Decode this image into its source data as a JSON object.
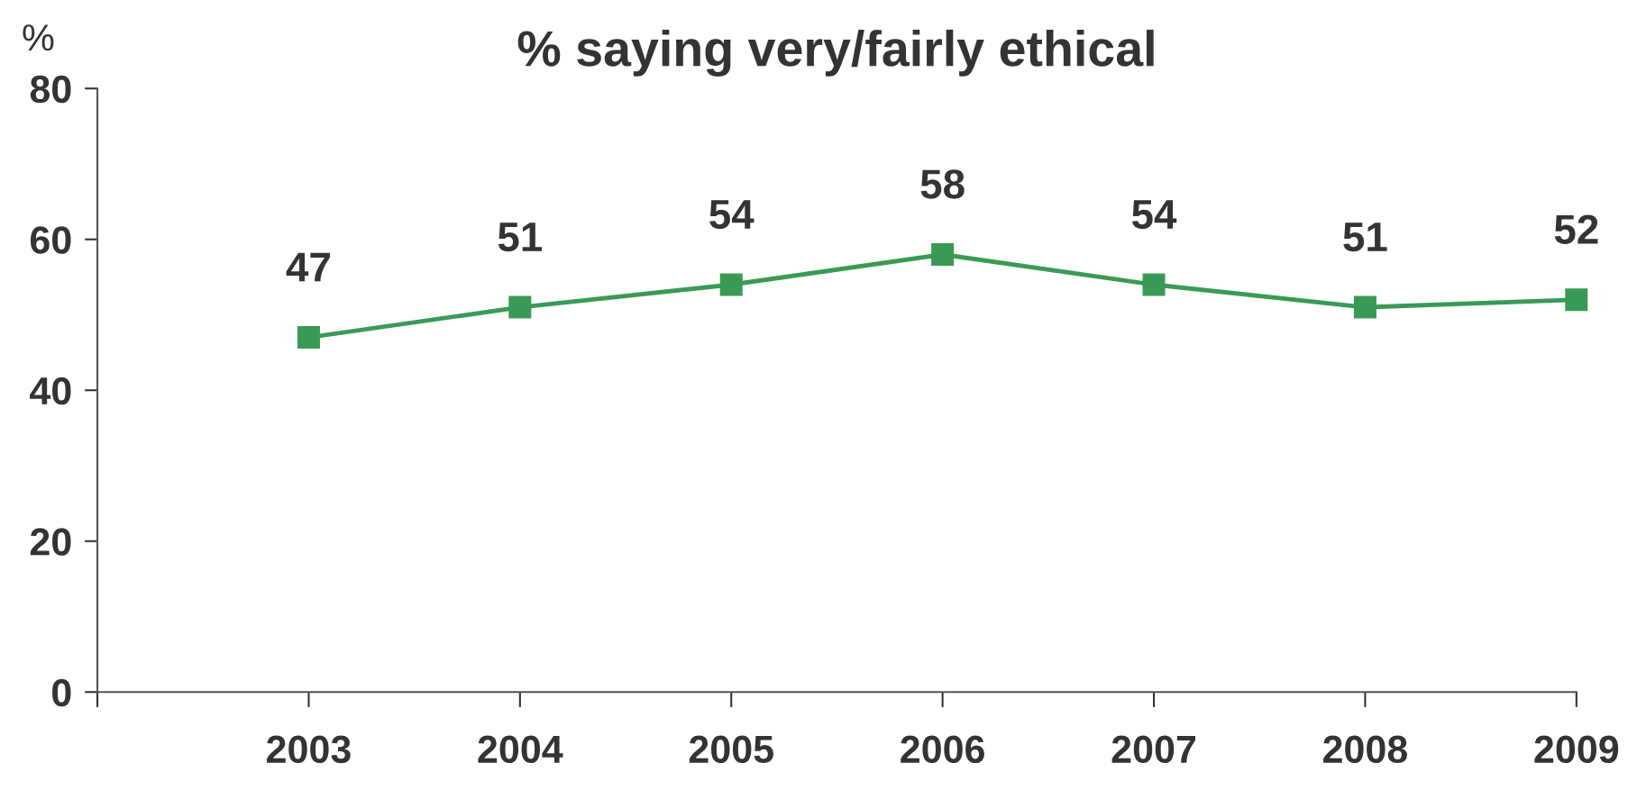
{
  "chart_data": {
    "type": "line",
    "title": "% saying very/fairly ethical",
    "ylabel": "%",
    "x": [
      2003,
      2004,
      2005,
      2006,
      2007,
      2008,
      2009
    ],
    "series": [
      {
        "color": "#3a9a55",
        "values": [
          47,
          51,
          54,
          58,
          54,
          51,
          52
        ]
      }
    ],
    "xlim": [
      2002,
      2009
    ],
    "xticks": [
      {
        "value": 2002,
        "label": null
      },
      2003,
      2004,
      2005,
      2006,
      2007,
      2008,
      2009
    ],
    "ylim": [
      0,
      80
    ],
    "yticks": [
      0,
      20,
      40,
      60,
      80
    ],
    "marker": "square",
    "line_style": "solid",
    "data_labels": true,
    "grid": false,
    "legend": false
  }
}
